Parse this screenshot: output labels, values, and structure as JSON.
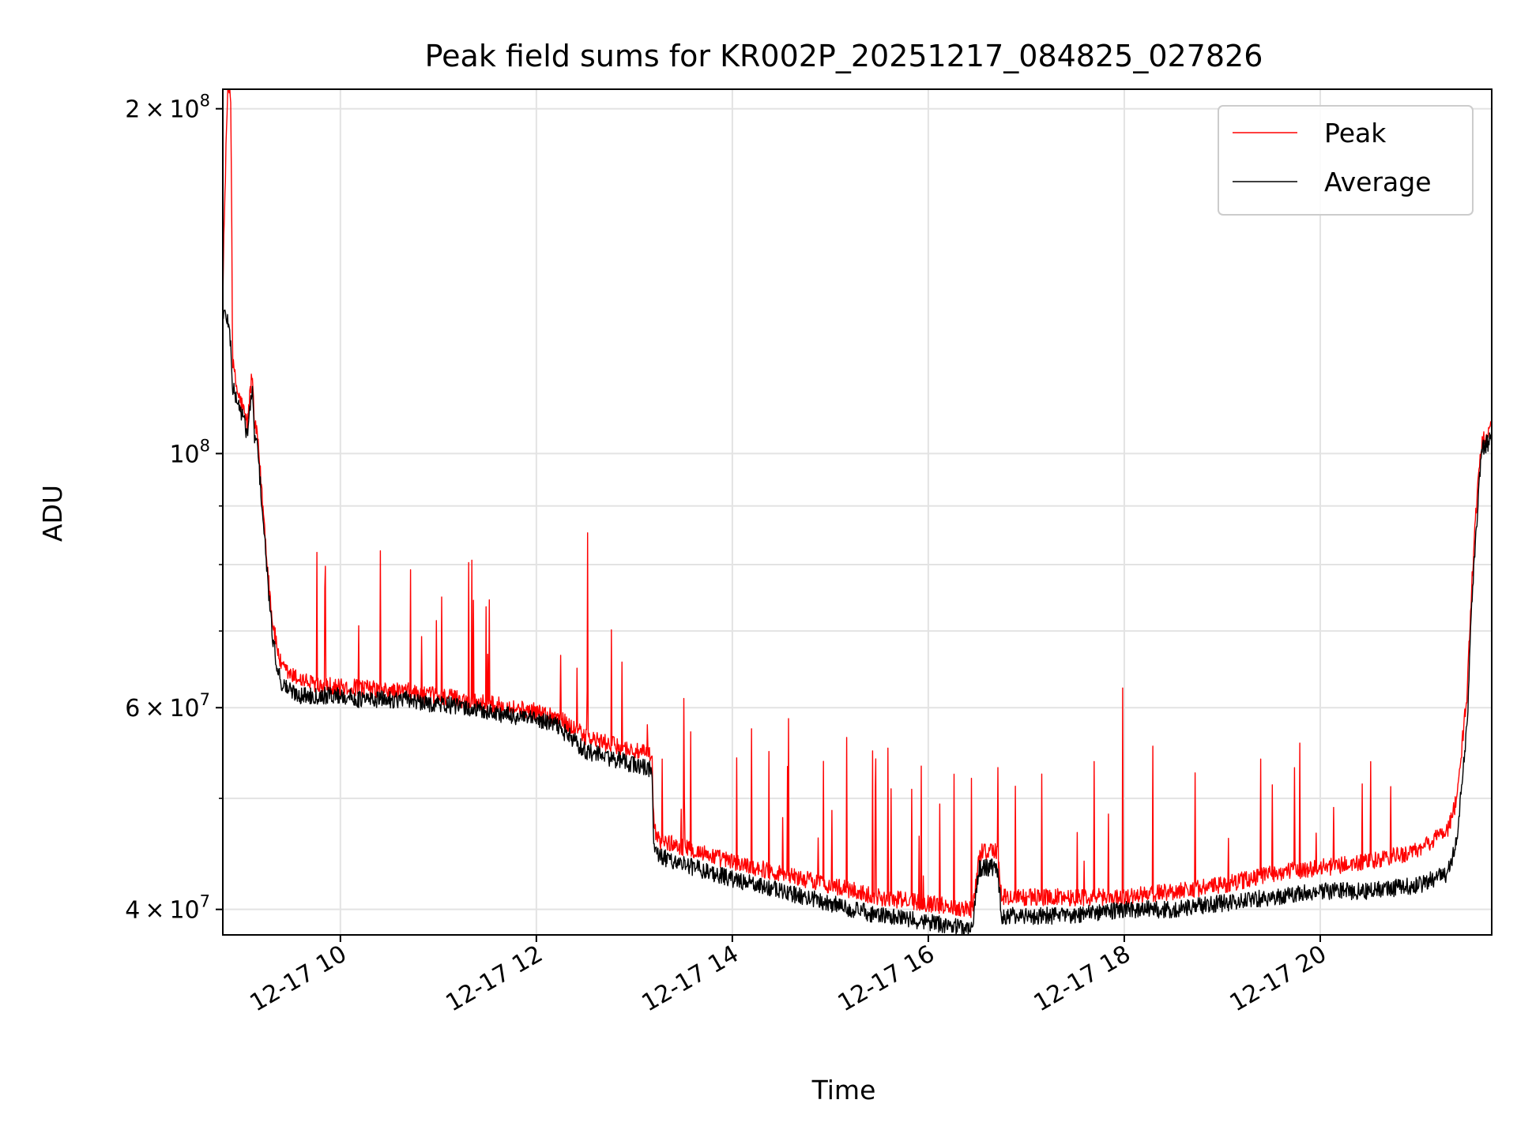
{
  "chart_data": {
    "type": "line",
    "title": "Peak field sums for KR002P_20251217_084825_027826",
    "xlabel": "Time",
    "ylabel": "ADU",
    "yscale": "log",
    "ylim": [
      38000000,
      208000000
    ],
    "xlim": [
      8.8,
      21.75
    ],
    "grid": true,
    "legend_position": "top-right",
    "x_ticks": [
      {
        "value": 10,
        "label": "12-17 10"
      },
      {
        "value": 12,
        "label": "12-17 12"
      },
      {
        "value": 14,
        "label": "12-17 14"
      },
      {
        "value": 16,
        "label": "12-17 16"
      },
      {
        "value": 18,
        "label": "12-17 18"
      },
      {
        "value": 20,
        "label": "12-17 20"
      }
    ],
    "y_major_ticks": [
      {
        "value": 40000000,
        "base": "4 × 10",
        "exp": "7"
      },
      {
        "value": 60000000,
        "base": "6 × 10",
        "exp": "7"
      },
      {
        "value": 100000000,
        "base": "10",
        "exp": "8"
      },
      {
        "value": 200000000,
        "base": "2 × 10",
        "exp": "8"
      }
    ],
    "y_minor_grid": [
      50000000,
      70000000,
      80000000,
      90000000
    ],
    "series": [
      {
        "name": "Peak",
        "color": "#ff0000",
        "x": [
          8.8,
          8.85,
          8.88,
          8.9,
          8.95,
          9.0,
          9.05,
          9.1,
          9.12,
          9.15,
          9.2,
          9.25,
          9.3,
          9.35,
          9.4,
          9.5,
          9.6,
          9.7,
          9.8,
          10.0,
          10.2,
          10.5,
          10.75,
          10.8,
          11.0,
          11.5,
          12.0,
          12.2,
          12.45,
          12.5,
          13.0,
          13.18,
          13.2,
          13.25,
          14.0,
          14.5,
          15.0,
          15.5,
          16.0,
          16.45,
          16.52,
          16.55,
          16.7,
          16.75,
          17.0,
          17.5,
          18.0,
          18.5,
          19.0,
          19.5,
          20.0,
          20.5,
          21.0,
          21.3,
          21.4,
          21.5,
          21.55,
          21.6,
          21.65,
          21.75
        ],
        "y": [
          138000000,
          208000000,
          208000000,
          120000000,
          113000000,
          110000000,
          106000000,
          118000000,
          106000000,
          104000000,
          92000000,
          81000000,
          72000000,
          68000000,
          65000000,
          64000000,
          63500000,
          63000000,
          63000000,
          62500000,
          62500000,
          62000000,
          62000000,
          61500000,
          61500000,
          60500000,
          59500000,
          59000000,
          57000000,
          56500000,
          55000000,
          54500000,
          47000000,
          46000000,
          44000000,
          43000000,
          42000000,
          41000000,
          40500000,
          40000000,
          44500000,
          45000000,
          45000000,
          41000000,
          41000000,
          41000000,
          41000000,
          41500000,
          42000000,
          43000000,
          43500000,
          44000000,
          45000000,
          47000000,
          50000000,
          62000000,
          78000000,
          92000000,
          103000000,
          105000000
        ]
      },
      {
        "name": "Average",
        "color": "#000000",
        "x": [
          8.8,
          8.85,
          8.88,
          8.9,
          8.95,
          9.0,
          9.05,
          9.1,
          9.12,
          9.15,
          9.2,
          9.25,
          9.3,
          9.35,
          9.4,
          9.5,
          9.6,
          9.7,
          9.8,
          10.0,
          10.2,
          10.5,
          10.75,
          10.8,
          11.0,
          11.5,
          12.0,
          12.2,
          12.45,
          12.5,
          13.0,
          13.18,
          13.2,
          13.25,
          14.0,
          14.5,
          15.0,
          15.5,
          16.0,
          16.45,
          16.52,
          16.55,
          16.7,
          16.75,
          17.0,
          17.5,
          18.0,
          18.5,
          19.0,
          19.5,
          20.0,
          20.5,
          21.0,
          21.3,
          21.4,
          21.5,
          21.55,
          21.6,
          21.65,
          21.75
        ],
        "y": [
          133000000,
          131000000,
          125000000,
          114000000,
          111000000,
          108000000,
          104000000,
          114000000,
          104000000,
          102000000,
          90000000,
          79000000,
          70000000,
          65500000,
          63000000,
          62000000,
          61500000,
          61500000,
          61500000,
          61500000,
          61000000,
          61000000,
          61000000,
          60500000,
          60500000,
          59500000,
          58500000,
          58000000,
          55500000,
          55000000,
          53500000,
          53000000,
          45000000,
          44500000,
          42500000,
          41500000,
          40500000,
          39500000,
          39000000,
          38500000,
          43500000,
          43500000,
          43500000,
          39500000,
          39500000,
          39500000,
          40000000,
          40000000,
          40500000,
          41000000,
          41500000,
          41500000,
          42000000,
          43000000,
          46000000,
          58000000,
          75000000,
          88000000,
          101000000,
          103000000
        ]
      }
    ]
  }
}
